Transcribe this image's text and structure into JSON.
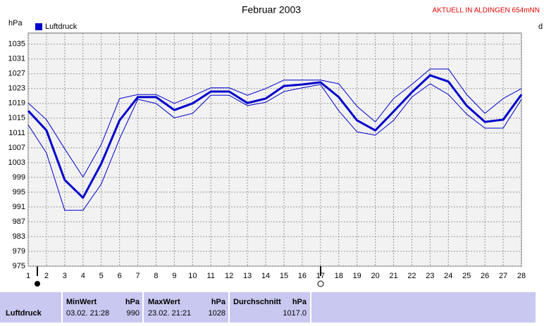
{
  "chart_data": {
    "type": "line",
    "title": "Februar 2003",
    "y_label": "hPa",
    "annotation": "AKTUELL IN ALDINGEN 654mNN",
    "right_label": "d",
    "x": [
      1,
      2,
      3,
      4,
      5,
      6,
      7,
      8,
      9,
      10,
      11,
      12,
      13,
      14,
      15,
      16,
      17,
      18,
      19,
      20,
      21,
      22,
      23,
      24,
      25,
      26,
      27,
      28
    ],
    "xlim": [
      1,
      28
    ],
    "xticks": [
      1,
      2,
      3,
      4,
      5,
      6,
      7,
      8,
      9,
      10,
      11,
      12,
      13,
      14,
      15,
      16,
      17,
      18,
      19,
      20,
      21,
      22,
      23,
      24,
      25,
      26,
      27,
      28
    ],
    "ylim": [
      975,
      1038
    ],
    "yticks": [
      975,
      979,
      983,
      987,
      991,
      995,
      999,
      1003,
      1007,
      1011,
      1015,
      1019,
      1023,
      1027,
      1031,
      1035
    ],
    "grid": true,
    "legend": "top-left",
    "series": [
      {
        "name": "Luftdruck",
        "color": "#0000cc",
        "width": 3,
        "values": [
          1017.0,
          1011.7,
          998.3,
          993.5,
          1002.7,
          1014.4,
          1020.7,
          1020.7,
          1017.2,
          1019.0,
          1022.2,
          1022.2,
          1019.1,
          1020.3,
          1023.7,
          1024.1,
          1024.7,
          1020.7,
          1014.4,
          1011.7,
          1016.8,
          1022.0,
          1026.6,
          1024.9,
          1018.4,
          1014.0,
          1014.6,
          1021.4
        ]
      },
      {
        "color": "#0000cc",
        "width": 1,
        "values": [
          1019.1,
          1014.6,
          1006.7,
          999.1,
          1007.9,
          1020.3,
          1021.4,
          1021.4,
          1019.0,
          1021.0,
          1023.2,
          1023.2,
          1021.2,
          1023.0,
          1025.3,
          1025.3,
          1025.3,
          1024.3,
          1018.2,
          1014.0,
          1020.3,
          1024.1,
          1028.3,
          1028.3,
          1021.4,
          1016.3,
          1020.3,
          1023.0
        ]
      },
      {
        "color": "#0000cc",
        "width": 1,
        "values": [
          1013.2,
          1005.6,
          990.1,
          990.1,
          997.2,
          1009.4,
          1020.1,
          1019.0,
          1015.1,
          1016.3,
          1021.2,
          1021.2,
          1018.4,
          1019.3,
          1022.2,
          1023.2,
          1024.1,
          1017.0,
          1011.3,
          1010.4,
          1014.4,
          1020.7,
          1024.3,
          1021.4,
          1016.1,
          1012.3,
          1012.3,
          1020.1
        ]
      }
    ]
  },
  "table": {
    "row_label": "Luftdruck",
    "columns": [
      {
        "header": "MinWert",
        "unit": "hPa",
        "time": "03.02.  21:28",
        "value": "990"
      },
      {
        "header": "MaxWert",
        "unit": "hPa",
        "time": "23.02.  21:21",
        "value": "1028"
      },
      {
        "header": "Durchschnitt",
        "unit": "hPa",
        "value": "1017.0"
      }
    ]
  }
}
